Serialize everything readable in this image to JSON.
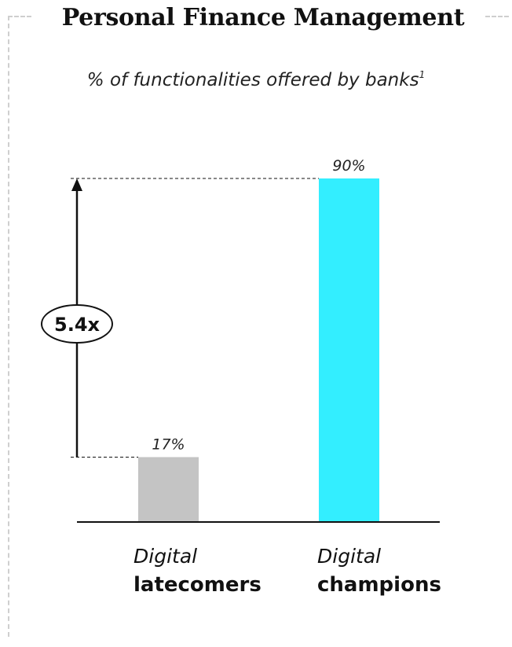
{
  "title": "Personal Finance Management",
  "subtitle": "% of functionalities offered by banks",
  "footnote_marker": "1",
  "multiplier_label": "5.4x",
  "chart_data": {
    "type": "bar",
    "categories": [
      "Digital latecomers",
      "Digital champions"
    ],
    "category_lines": [
      [
        "Digital",
        "latecomers"
      ],
      [
        "Digital",
        "champions"
      ]
    ],
    "values": [
      17,
      90
    ],
    "value_labels": [
      "17%",
      "90%"
    ],
    "bar_colors": [
      "#c4c4c4",
      "#33eeff"
    ],
    "ylim": [
      0,
      100
    ],
    "title": "Personal Finance Management",
    "subtitle": "% of functionalities offered by banks",
    "annotation": "5.4x",
    "grid": false
  }
}
